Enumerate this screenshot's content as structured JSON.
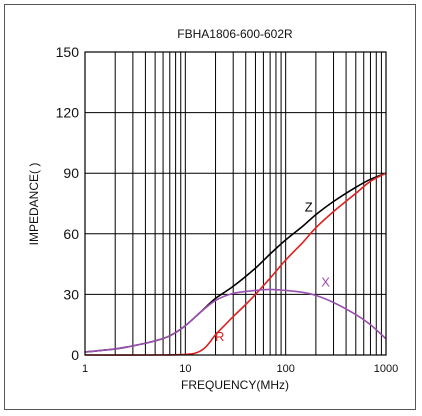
{
  "chart_data": {
    "type": "line",
    "title": "FBHA1806-600-602R",
    "xlabel": "FREQUENCY(MHz)",
    "ylabel": "IMPEDANCE(  )",
    "x_scale": "log",
    "xlim": [
      1,
      1000
    ],
    "ylim": [
      0,
      150
    ],
    "x_ticks": [
      1,
      10,
      100,
      1000
    ],
    "x_tick_labels": [
      "1",
      "10",
      "100",
      "1000"
    ],
    "y_ticks": [
      0,
      30,
      60,
      90,
      120,
      150
    ],
    "y_tick_labels": [
      "0",
      "30",
      "60",
      "90",
      "120",
      "150"
    ],
    "grid": true,
    "series": [
      {
        "name": "Z",
        "color": "#000000",
        "x": [
          1,
          2,
          3,
          5,
          7,
          10,
          14,
          20,
          30,
          50,
          70,
          100,
          150,
          200,
          300,
          500,
          700,
          1000
        ],
        "y": [
          1.5,
          3,
          4.5,
          7,
          9.5,
          14.5,
          21,
          28,
          34,
          43,
          50,
          57,
          64,
          69.5,
          76,
          83,
          87,
          90
        ]
      },
      {
        "name": "R",
        "color": "#e02020",
        "x": [
          1,
          5,
          10,
          13,
          16,
          20,
          25,
          30,
          40,
          50,
          70,
          100,
          150,
          200,
          300,
          500,
          700,
          1000
        ],
        "y": [
          0,
          0,
          0.3,
          1.2,
          4,
          10,
          15,
          19,
          25,
          30,
          38,
          47,
          56,
          63,
          71,
          80,
          86,
          90
        ]
      },
      {
        "name": "X",
        "color": "#9a50b0",
        "x": [
          1,
          2,
          3,
          5,
          7,
          10,
          14,
          20,
          30,
          50,
          70,
          100,
          150,
          200,
          300,
          500,
          700,
          1000
        ],
        "y": [
          1.5,
          3,
          4.5,
          7,
          9.5,
          14.5,
          21,
          27,
          30.5,
          32,
          32.5,
          32,
          31,
          29.5,
          26,
          20,
          15,
          8
        ]
      }
    ],
    "series_labels": [
      {
        "text": "Z",
        "color": "#000000",
        "x": 170,
        "y": 71
      },
      {
        "text": "R",
        "color": "#e02020",
        "x": 22,
        "y": 7
      },
      {
        "text": "X",
        "color": "#9a50b0",
        "x": 250,
        "y": 34
      }
    ]
  }
}
